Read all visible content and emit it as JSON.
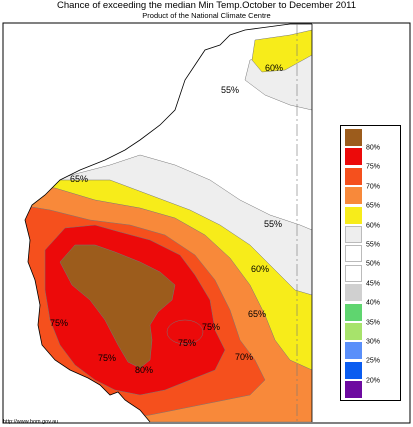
{
  "title": "Chance of exceeding the median Min Temp.October to December 2011",
  "subtitle": "Product of the National Climate Centre",
  "map_labels": [
    "60%",
    "55%",
    "65%",
    "55%",
    "60%",
    "65%",
    "75%",
    "75%",
    "75%",
    "75%",
    "70%",
    "80%"
  ],
  "legend": [
    {
      "label": "80%",
      "color": "#9c5c1c"
    },
    {
      "label": "75%",
      "color": "#ec0a0a"
    },
    {
      "label": "70%",
      "color": "#f5501d"
    },
    {
      "label": "65%",
      "color": "#f8893a"
    },
    {
      "label": "60%",
      "color": "#f7ec1a"
    },
    {
      "label": "55%",
      "color": "#eeeeee"
    },
    {
      "label": "50%",
      "color": "#ffffff"
    },
    {
      "label": "45%",
      "color": "#ffffff"
    },
    {
      "label": "40%",
      "color": "#d0d0d0"
    },
    {
      "label": "35%",
      "color": "#5fd56f"
    },
    {
      "label": "30%",
      "color": "#a7e36b"
    },
    {
      "label": "25%",
      "color": "#5a8ffa"
    },
    {
      "label": "20%",
      "color": "#0a5cf0"
    },
    {
      "label": "",
      "color": "#6d0aa0"
    }
  ],
  "url": "http://www.bom.gov.au"
}
